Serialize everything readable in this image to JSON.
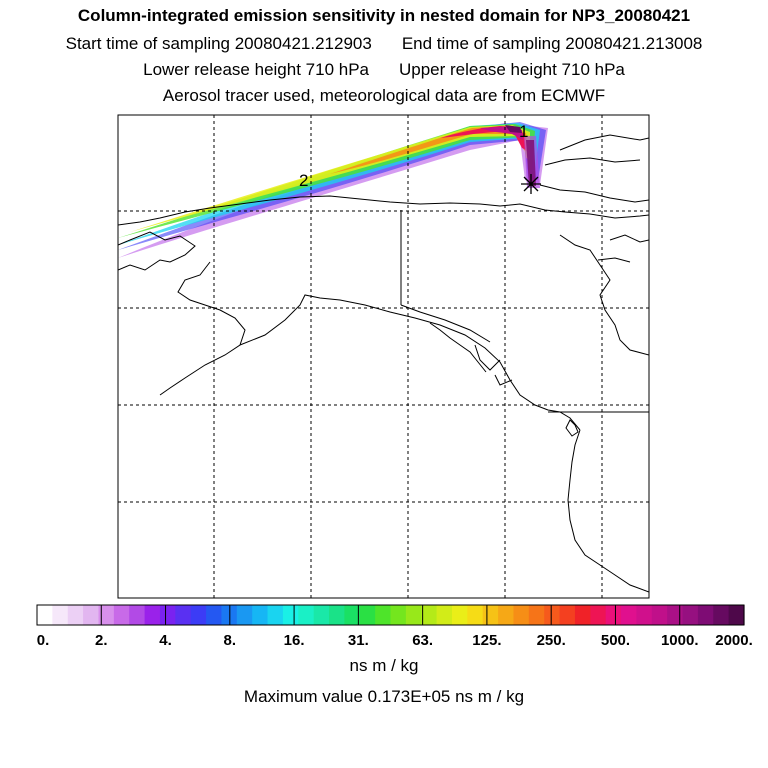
{
  "header": {
    "title": "Column-integrated emission sensitivity in nested domain for NP3_20080421",
    "start_label": "Start time of sampling 20080421.212903",
    "end_label": "End time of sampling 20080421.213008",
    "lower_label": "Lower release height  710 hPa",
    "upper_label": "Upper release height  710 hPa",
    "tracer_line": "Aerosol tracer used, meteorological data are from ECMWF"
  },
  "map": {
    "markers": [
      {
        "id": "1",
        "label": "1"
      },
      {
        "id": "2",
        "label": "2"
      }
    ],
    "gridlines": "dashed",
    "release_marker": "asterisk-icon"
  },
  "colorbar": {
    "tick_labels": [
      "0.",
      "2.",
      "4.",
      "8.",
      "16.",
      "31.",
      "63.",
      "125.",
      "250.",
      "500.",
      "1000.",
      "2000."
    ],
    "colors": [
      "#ffffff",
      "#f6e8fa",
      "#ecd0f5",
      "#e2b6f0",
      "#d890ec",
      "#c86ae8",
      "#b24ae6",
      "#9a22ea",
      "#7a22f0",
      "#5a30f2",
      "#3c3cf6",
      "#2458f2",
      "#1a78f2",
      "#1a98f2",
      "#16b6f4",
      "#1ad4f0",
      "#1af0e6",
      "#1af0c6",
      "#1ae8a8",
      "#1ae288",
      "#1ae064",
      "#2ae044",
      "#4ee42a",
      "#74e61e",
      "#98e81a",
      "#b4ea18",
      "#d2ec18",
      "#eaee18",
      "#f6dc16",
      "#f6c216",
      "#f6a816",
      "#f68e16",
      "#f67418",
      "#f65a1c",
      "#f44020",
      "#f02228",
      "#ee1454",
      "#ea107a",
      "#e0108e",
      "#d0108c",
      "#c0108a",
      "#aa1086",
      "#961080",
      "#7e0c74",
      "#660a60",
      "#4e084a"
    ],
    "units": "ns m / kg",
    "max_value_text": "Maximum value  0.173E+05 ns m / kg"
  }
}
